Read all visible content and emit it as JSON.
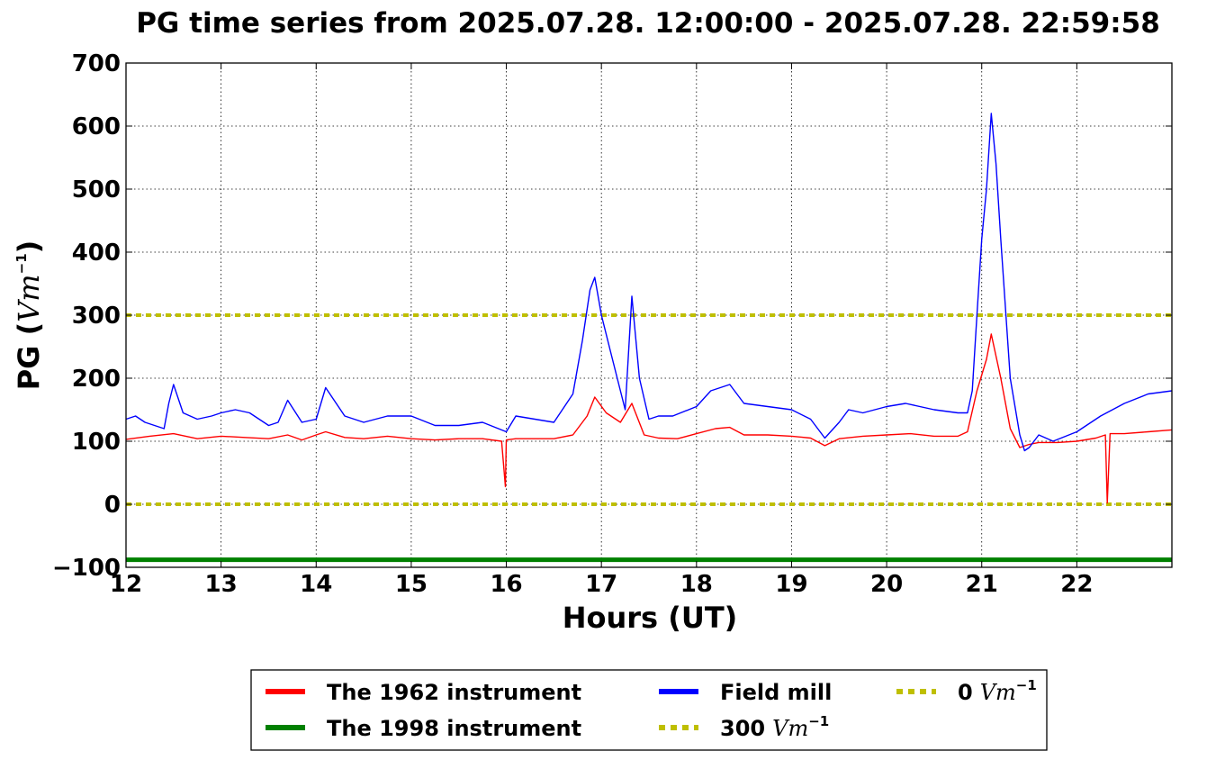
{
  "chart_data": {
    "type": "line",
    "title": "PG time series from 2025.07.28. 12:00:00 - 2025.07.28. 22:59:58",
    "xlabel": "Hours (UT)",
    "ylabel_main": "PG (",
    "ylabel_unit": "Vm",
    "ylabel_exp": "−1",
    "ylabel_close": ")",
    "xlim": [
      12,
      23
    ],
    "ylim": [
      -100,
      700
    ],
    "xticks": [
      12,
      13,
      14,
      15,
      16,
      17,
      18,
      19,
      20,
      21,
      22
    ],
    "xtick_labels": [
      "12",
      "13",
      "14",
      "15",
      "16",
      "17",
      "18",
      "19",
      "20",
      "21",
      "22"
    ],
    "yticks": [
      -100,
      0,
      100,
      200,
      300,
      400,
      500,
      600,
      700
    ],
    "ytick_labels": [
      "−100",
      "0",
      "100",
      "200",
      "300",
      "400",
      "500",
      "600",
      "700"
    ],
    "grid": true,
    "legend_position": "bottom-center",
    "series": [
      {
        "name": "The 1962 instrument",
        "color": "#ff0000",
        "style": "solid",
        "x": [
          12.0,
          12.25,
          12.5,
          12.75,
          13.0,
          13.25,
          13.5,
          13.7,
          13.85,
          14.0,
          14.1,
          14.3,
          14.5,
          14.75,
          15.0,
          15.25,
          15.5,
          15.75,
          15.95,
          15.99,
          16.0,
          16.1,
          16.3,
          16.5,
          16.7,
          16.85,
          16.93,
          17.05,
          17.2,
          17.32,
          17.45,
          17.6,
          17.8,
          18.0,
          18.2,
          18.35,
          18.5,
          18.75,
          19.0,
          19.2,
          19.35,
          19.5,
          19.75,
          20.0,
          20.25,
          20.5,
          20.75,
          20.85,
          20.95,
          21.05,
          21.1,
          21.2,
          21.3,
          21.4,
          21.5,
          21.6,
          21.8,
          22.0,
          22.2,
          22.3,
          22.32,
          22.35,
          22.5,
          22.75,
          23.0
        ],
        "y": [
          103,
          108,
          112,
          104,
          108,
          106,
          104,
          110,
          102,
          110,
          115,
          106,
          104,
          108,
          104,
          102,
          104,
          104,
          100,
          28,
          102,
          104,
          104,
          104,
          110,
          140,
          170,
          145,
          130,
          160,
          110,
          105,
          104,
          112,
          120,
          122,
          110,
          110,
          108,
          105,
          93,
          104,
          108,
          110,
          112,
          108,
          108,
          115,
          180,
          230,
          270,
          200,
          120,
          90,
          95,
          98,
          98,
          100,
          105,
          110,
          2,
          112,
          112,
          115,
          118
        ]
      },
      {
        "name": "The 1998 instrument",
        "color": "#008000",
        "style": "solid",
        "x": [
          12,
          23
        ],
        "y": [
          -88,
          -88
        ]
      },
      {
        "name": "Field mill",
        "color": "#0000ff",
        "style": "solid",
        "x": [
          12.0,
          12.1,
          12.2,
          12.3,
          12.4,
          12.45,
          12.5,
          12.6,
          12.75,
          12.9,
          13.0,
          13.15,
          13.3,
          13.5,
          13.6,
          13.7,
          13.85,
          14.0,
          14.1,
          14.3,
          14.5,
          14.75,
          15.0,
          15.25,
          15.5,
          15.75,
          16.0,
          16.1,
          16.3,
          16.5,
          16.7,
          16.8,
          16.88,
          16.93,
          17.0,
          17.1,
          17.25,
          17.32,
          17.4,
          17.5,
          17.6,
          17.75,
          18.0,
          18.15,
          18.35,
          18.5,
          18.75,
          19.0,
          19.2,
          19.35,
          19.5,
          19.6,
          19.75,
          20.0,
          20.2,
          20.5,
          20.75,
          20.85,
          20.9,
          20.95,
          21.0,
          21.05,
          21.1,
          21.15,
          21.2,
          21.3,
          21.4,
          21.45,
          21.5,
          21.6,
          21.75,
          22.0,
          22.25,
          22.5,
          22.75,
          23.0
        ],
        "y": [
          135,
          140,
          130,
          125,
          120,
          160,
          190,
          145,
          135,
          140,
          145,
          150,
          145,
          125,
          130,
          165,
          130,
          135,
          185,
          140,
          130,
          140,
          140,
          125,
          125,
          130,
          115,
          140,
          135,
          130,
          175,
          260,
          340,
          360,
          300,
          240,
          150,
          330,
          200,
          135,
          140,
          140,
          155,
          180,
          190,
          160,
          155,
          150,
          135,
          105,
          130,
          150,
          145,
          155,
          160,
          150,
          145,
          145,
          180,
          300,
          420,
          500,
          620,
          540,
          420,
          200,
          110,
          85,
          90,
          110,
          100,
          115,
          140,
          160,
          175,
          180
        ]
      },
      {
        "name": "300",
        "unit_label": "Vm",
        "unit_exp": "−1",
        "color": "#bfbf00",
        "style": "dotted",
        "x": [
          12,
          23
        ],
        "y": [
          300,
          300
        ]
      },
      {
        "name": "0",
        "unit_label": "Vm",
        "unit_exp": "−1",
        "color": "#bfbf00",
        "style": "dotted",
        "x": [
          12,
          23
        ],
        "y": [
          0,
          0
        ]
      }
    ]
  }
}
